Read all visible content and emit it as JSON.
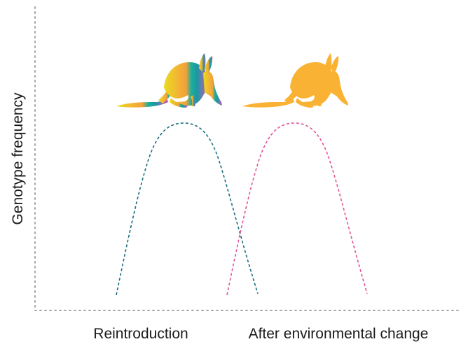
{
  "y_axis_label": "Genotype frequency",
  "x_labels": {
    "left": "Reintroduction",
    "right": "After environmental change"
  },
  "colors": {
    "axis": "#a8a8a8",
    "curve_left": "#1a6e80",
    "curve_right": "#e0559a",
    "animal_right": "#f9b233",
    "gradient": [
      "#e8dc1e",
      "#f6a632",
      "#14a88e",
      "#1f9aa8",
      "#a0609e",
      "#d94fa0"
    ]
  },
  "icons": {
    "left_animal": "bilby-gradient-icon",
    "right_animal": "bilby-orange-icon"
  }
}
